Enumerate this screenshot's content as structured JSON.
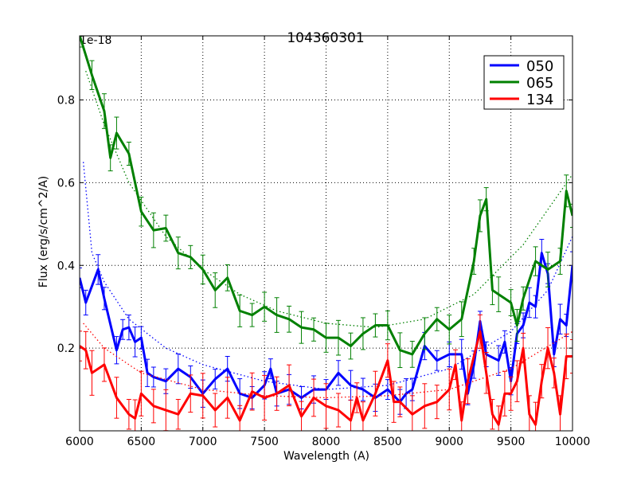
{
  "chart_data": {
    "type": "line",
    "title": "104360301",
    "xlabel": "Wavelength (A)",
    "ylabel": "Flux (erg/s/cm^2/A)",
    "offset_label": "1e-18",
    "xlim": [
      6000,
      10000
    ],
    "ylim": [
      0.0,
      0.955
    ],
    "xticks": [
      6000,
      6500,
      7000,
      7500,
      8000,
      8500,
      9000,
      9500,
      10000
    ],
    "xtick_labels": [
      "6000",
      "6500",
      "7000",
      "7500",
      "8000",
      "8500",
      "9000",
      "9500",
      "10000"
    ],
    "yticks": [
      0.2,
      0.4,
      0.6,
      0.8
    ],
    "ytick_labels": [
      "0.2",
      "0.4",
      "0.6",
      "0.8"
    ],
    "grid": true,
    "legend_position": "top-right",
    "series": [
      {
        "name": "050",
        "color": "#0000ff",
        "err": 0.03,
        "x": [
          6000,
          6050,
          6150,
          6200,
          6300,
          6350,
          6400,
          6450,
          6500,
          6550,
          6600,
          6700,
          6800,
          6900,
          7000,
          7100,
          7200,
          7300,
          7400,
          7500,
          7550,
          7600,
          7700,
          7800,
          7900,
          8000,
          8100,
          8200,
          8300,
          8400,
          8500,
          8600,
          8650,
          8700,
          8800,
          8900,
          9000,
          9100,
          9150,
          9200,
          9250,
          9300,
          9400,
          9450,
          9500,
          9550,
          9600,
          9650,
          9700,
          9750,
          9800,
          9850,
          9900,
          9950,
          10000
        ],
        "y": [
          0.37,
          0.31,
          0.39,
          0.32,
          0.195,
          0.245,
          0.25,
          0.215,
          0.225,
          0.14,
          0.13,
          0.12,
          0.15,
          0.13,
          0.09,
          0.125,
          0.15,
          0.09,
          0.08,
          0.11,
          0.15,
          0.09,
          0.1,
          0.08,
          0.1,
          0.1,
          0.14,
          0.11,
          0.1,
          0.08,
          0.1,
          0.07,
          0.09,
          0.1,
          0.205,
          0.17,
          0.185,
          0.185,
          0.09,
          0.16,
          0.265,
          0.185,
          0.17,
          0.215,
          0.12,
          0.235,
          0.255,
          0.31,
          0.3,
          0.43,
          0.38,
          0.185,
          0.27,
          0.255,
          0.4
        ],
        "fit_x": [
          6030,
          6100,
          6200,
          6400,
          6700,
          7000,
          7500,
          8000,
          8500,
          9000,
          9500,
          9800,
          10000
        ],
        "fit_y": [
          0.65,
          0.43,
          0.36,
          0.27,
          0.2,
          0.16,
          0.12,
          0.1,
          0.11,
          0.15,
          0.24,
          0.34,
          0.47
        ]
      },
      {
        "name": "065",
        "color": "#008000",
        "err": 0.035,
        "x": [
          6000,
          6100,
          6200,
          6250,
          6300,
          6400,
          6500,
          6600,
          6700,
          6800,
          6900,
          7000,
          7100,
          7200,
          7300,
          7400,
          7500,
          7600,
          7700,
          7800,
          7900,
          8000,
          8100,
          8200,
          8300,
          8400,
          8500,
          8600,
          8700,
          8800,
          8900,
          9000,
          9100,
          9200,
          9250,
          9300,
          9350,
          9400,
          9500,
          9550,
          9600,
          9700,
          9800,
          9900,
          9950,
          10000
        ],
        "y": [
          0.956,
          0.86,
          0.773,
          0.66,
          0.72,
          0.67,
          0.53,
          0.485,
          0.49,
          0.43,
          0.42,
          0.39,
          0.34,
          0.37,
          0.29,
          0.28,
          0.3,
          0.28,
          0.27,
          0.25,
          0.245,
          0.225,
          0.225,
          0.205,
          0.235,
          0.255,
          0.255,
          0.195,
          0.185,
          0.235,
          0.27,
          0.245,
          0.27,
          0.41,
          0.52,
          0.56,
          0.34,
          0.33,
          0.31,
          0.255,
          0.32,
          0.41,
          0.39,
          0.41,
          0.58,
          0.52
        ],
        "fit_x": [
          6050,
          6200,
          6400,
          6700,
          7000,
          7300,
          7600,
          8000,
          8400,
          8800,
          9200,
          9600,
          10000
        ],
        "fit_y": [
          0.87,
          0.74,
          0.6,
          0.47,
          0.39,
          0.33,
          0.29,
          0.26,
          0.25,
          0.27,
          0.33,
          0.45,
          0.62
        ]
      },
      {
        "name": "134",
        "color": "#ff0000",
        "err": 0.045,
        "x": [
          6000,
          6050,
          6100,
          6200,
          6300,
          6400,
          6450,
          6500,
          6600,
          6700,
          6800,
          6900,
          7000,
          7100,
          7200,
          7300,
          7400,
          7500,
          7600,
          7700,
          7800,
          7900,
          8000,
          8100,
          8200,
          8250,
          8300,
          8400,
          8500,
          8550,
          8600,
          8700,
          8800,
          8900,
          9000,
          9050,
          9100,
          9150,
          9250,
          9300,
          9350,
          9400,
          9450,
          9500,
          9550,
          9600,
          9650,
          9700,
          9750,
          9800,
          9850,
          9900,
          9950,
          10000
        ],
        "y": [
          0.205,
          0.195,
          0.14,
          0.16,
          0.08,
          0.04,
          0.03,
          0.09,
          0.06,
          0.05,
          0.04,
          0.09,
          0.085,
          0.05,
          0.08,
          0.025,
          0.095,
          0.08,
          0.09,
          0.11,
          0.035,
          0.08,
          0.06,
          0.05,
          0.025,
          0.08,
          0.025,
          0.09,
          0.17,
          0.07,
          0.07,
          0.04,
          0.06,
          0.07,
          0.1,
          0.16,
          0.025,
          0.12,
          0.24,
          0.14,
          0.04,
          0.015,
          0.09,
          0.09,
          0.12,
          0.2,
          0.04,
          0.015,
          0.12,
          0.2,
          0.14,
          0.04,
          0.18,
          0.18
        ],
        "fit_x": [
          6030,
          6200,
          6500,
          7000,
          7500,
          8000,
          8500,
          9000,
          9500,
          10000
        ],
        "fit_y": [
          0.26,
          0.2,
          0.14,
          0.1,
          0.085,
          0.08,
          0.085,
          0.1,
          0.15,
          0.24
        ]
      }
    ]
  }
}
